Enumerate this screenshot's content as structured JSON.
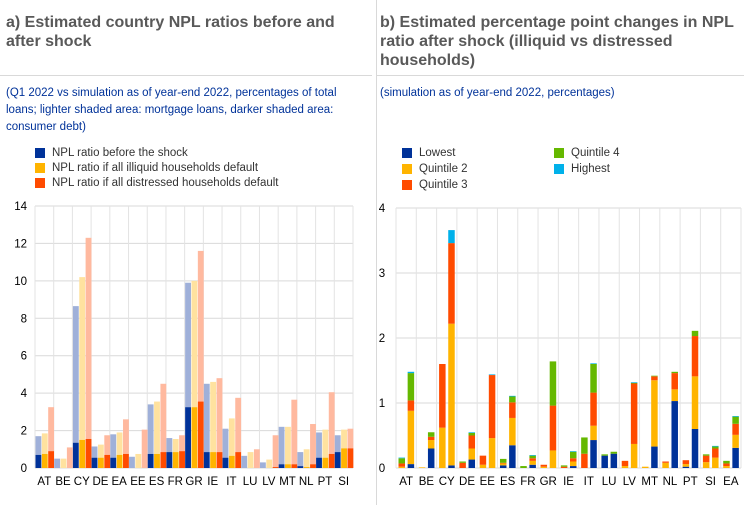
{
  "panels": {
    "a": {
      "title": "a) Estimated country NPL ratios before and after shock",
      "subtitle": "(Q1 2022 vs simulation as of year-end 2022, percentages of total loans; lighter shaded area: mortgage loans, darker shaded area: consumer debt)",
      "legend": [
        {
          "label": "NPL ratio before the shock",
          "color": "#003299"
        },
        {
          "label": "NPL ratio if all illiquid households default",
          "color": "#ffb400"
        },
        {
          "label": "NPL ratio if all distressed households default",
          "color": "#ff4b00"
        }
      ]
    },
    "b": {
      "title": "b) Estimated percentage point changes in NPL ratio after shock (illiquid vs distressed households)",
      "subtitle": "(simulation as of year-end 2022, percentages)",
      "legend": [
        {
          "label": "Lowest",
          "color": "#003299"
        },
        {
          "label": "Quintile 2",
          "color": "#ffb400"
        },
        {
          "label": "Quintile 3",
          "color": "#ff4b00"
        },
        {
          "label": "Quintile 4",
          "color": "#65b800"
        },
        {
          "label": "Highest",
          "color": "#00b1ea"
        }
      ]
    }
  },
  "chart_data": [
    {
      "type": "bar",
      "title": "a) Estimated country NPL ratios before and after shock",
      "xlabel": "",
      "ylabel": "",
      "ylim": [
        0,
        14
      ],
      "yticks": [
        0,
        2,
        4,
        6,
        8,
        10,
        12,
        14
      ],
      "grid": true,
      "legend_position": "top-left",
      "categories": [
        "AT",
        "BE",
        "CY",
        "DE",
        "EA",
        "EE",
        "ES",
        "FR",
        "GR",
        "IE",
        "IT",
        "LU",
        "LV",
        "MT",
        "NL",
        "PT",
        "SI"
      ],
      "series": [
        {
          "name": "NPL ratio before the shock",
          "color": "#003299",
          "light_color": "#9fb0d9",
          "consumer": [
            0.7,
            0,
            1.35,
            0.55,
            0.55,
            0,
            0.75,
            0.85,
            3.25,
            0.85,
            0.55,
            0,
            0,
            0.2,
            0.1,
            0.55,
            0.85
          ],
          "total": [
            1.7,
            0.5,
            8.65,
            1.15,
            1.8,
            0.6,
            3.4,
            1.6,
            9.9,
            4.5,
            2.1,
            0.65,
            0.3,
            2.2,
            0.85,
            1.9,
            1.75
          ]
        },
        {
          "name": "NPL ratio if all illiquid households default",
          "color": "#ffb400",
          "light_color": "#ffe29f",
          "consumer": [
            0.75,
            0,
            1.5,
            0.55,
            0.7,
            0,
            0.75,
            0.85,
            3.25,
            0.85,
            0.65,
            0,
            0,
            0.2,
            0.05,
            0.55,
            1.05
          ],
          "total": [
            1.85,
            0.5,
            10.2,
            1.25,
            1.9,
            0.75,
            3.55,
            1.55,
            10.0,
            4.6,
            2.65,
            0.85,
            0.45,
            2.2,
            1.0,
            2.05,
            2.05
          ]
        },
        {
          "name": "NPL ratio if all distressed households default",
          "color": "#ff4b00",
          "light_color": "#ffb99f",
          "consumer": [
            0.9,
            0,
            1.55,
            0.7,
            0.75,
            0,
            0.85,
            0.9,
            3.55,
            0.85,
            0.85,
            0,
            0.05,
            0.2,
            0.2,
            0.75,
            1.05
          ],
          "total": [
            3.25,
            1.1,
            12.3,
            1.75,
            2.6,
            2.05,
            4.5,
            1.75,
            11.6,
            4.8,
            3.75,
            1.0,
            1.75,
            3.65,
            2.35,
            4.05,
            2.1
          ]
        }
      ]
    },
    {
      "type": "bar",
      "stacked": true,
      "title": "b) Estimated percentage point changes in NPL ratio after shock (illiquid vs distressed households)",
      "xlabel": "",
      "ylabel": "",
      "ylim": [
        0,
        4
      ],
      "yticks": [
        0,
        1,
        2,
        3,
        4
      ],
      "grid": true,
      "legend_position": "top-left",
      "categories": [
        "AT",
        "BE",
        "CY",
        "DE",
        "EE",
        "ES",
        "FR",
        "GR",
        "IE",
        "IT",
        "LU",
        "LV",
        "MT",
        "NL",
        "PT",
        "SI",
        "EA"
      ],
      "bar_groups": [
        "illiquid",
        "distressed"
      ],
      "series_names": [
        "Lowest",
        "Quintile 2",
        "Quintile 3",
        "Quintile 4",
        "Highest"
      ],
      "bars": [
        {
          "category": "AT",
          "group": "illiquid",
          "values": [
            0.0,
            0.02,
            0.05,
            0.08,
            0.01
          ]
        },
        {
          "category": "AT",
          "group": "distressed",
          "values": [
            0.06,
            0.82,
            0.16,
            0.42,
            0.02
          ]
        },
        {
          "category": "BE",
          "group": "illiquid",
          "values": [
            0.0,
            0.01,
            0.0,
            0.0,
            0.0
          ]
        },
        {
          "category": "BE",
          "group": "distressed",
          "values": [
            0.3,
            0.13,
            0.05,
            0.07,
            0.0
          ]
        },
        {
          "category": "CY",
          "group": "illiquid",
          "values": [
            0.0,
            0.62,
            0.98,
            0.0,
            0.0
          ]
        },
        {
          "category": "CY",
          "group": "distressed",
          "values": [
            0.04,
            2.18,
            1.24,
            0.0,
            0.2
          ]
        },
        {
          "category": "DE",
          "group": "illiquid",
          "values": [
            0.0,
            0.0,
            0.08,
            0.02,
            0.0
          ]
        },
        {
          "category": "DE",
          "group": "distressed",
          "values": [
            0.13,
            0.17,
            0.2,
            0.04,
            0.01
          ]
        },
        {
          "category": "EE",
          "group": "illiquid",
          "values": [
            0.0,
            0.05,
            0.14,
            0.0,
            0.0
          ]
        },
        {
          "category": "EE",
          "group": "distressed",
          "values": [
            0.0,
            0.46,
            0.97,
            0.0,
            0.01
          ]
        },
        {
          "category": "ES",
          "group": "illiquid",
          "values": [
            0.04,
            0.03,
            0.01,
            0.06,
            0.0
          ]
        },
        {
          "category": "ES",
          "group": "distressed",
          "values": [
            0.35,
            0.42,
            0.24,
            0.09,
            0.01
          ]
        },
        {
          "category": "FR",
          "group": "illiquid",
          "values": [
            0.0,
            0.0,
            0.0,
            0.03,
            0.0
          ]
        },
        {
          "category": "FR",
          "group": "distressed",
          "values": [
            0.05,
            0.06,
            0.04,
            0.04,
            0.01
          ]
        },
        {
          "category": "GR",
          "group": "illiquid",
          "values": [
            0.0,
            0.02,
            0.03,
            0.0,
            0.0
          ]
        },
        {
          "category": "GR",
          "group": "distressed",
          "values": [
            0.0,
            0.27,
            0.69,
            0.68,
            0.0
          ]
        },
        {
          "category": "IE",
          "group": "illiquid",
          "values": [
            0.0,
            0.0,
            0.02,
            0.02,
            0.0
          ]
        },
        {
          "category": "IE",
          "group": "distressed",
          "values": [
            0.03,
            0.07,
            0.05,
            0.1,
            0.01
          ]
        },
        {
          "category": "IT",
          "group": "illiquid",
          "values": [
            0.0,
            0.0,
            0.22,
            0.25,
            0.0
          ]
        },
        {
          "category": "IT",
          "group": "distressed",
          "values": [
            0.43,
            0.22,
            0.51,
            0.44,
            0.01
          ]
        },
        {
          "category": "LU",
          "group": "illiquid",
          "values": [
            0.19,
            0.0,
            0.0,
            0.02,
            0.0
          ]
        },
        {
          "category": "LU",
          "group": "distressed",
          "values": [
            0.22,
            0.0,
            0.0,
            0.03,
            0.0
          ]
        },
        {
          "category": "LV",
          "group": "illiquid",
          "values": [
            0.0,
            0.03,
            0.08,
            0.0,
            0.0
          ]
        },
        {
          "category": "LV",
          "group": "distressed",
          "values": [
            0.0,
            0.37,
            0.93,
            0.01,
            0.01
          ]
        },
        {
          "category": "MT",
          "group": "illiquid",
          "values": [
            0.0,
            0.02,
            0.0,
            0.0,
            0.0
          ]
        },
        {
          "category": "MT",
          "group": "distressed",
          "values": [
            0.33,
            1.02,
            0.06,
            0.01,
            0.0
          ]
        },
        {
          "category": "NL",
          "group": "illiquid",
          "values": [
            0.0,
            0.08,
            0.02,
            0.0,
            0.0
          ]
        },
        {
          "category": "NL",
          "group": "distressed",
          "values": [
            1.03,
            0.18,
            0.25,
            0.02,
            0.0
          ]
        },
        {
          "category": "PT",
          "group": "illiquid",
          "values": [
            0.02,
            0.04,
            0.06,
            0.0,
            0.0
          ]
        },
        {
          "category": "PT",
          "group": "distressed",
          "values": [
            0.6,
            0.81,
            0.62,
            0.08,
            0.0
          ]
        },
        {
          "category": "SI",
          "group": "illiquid",
          "values": [
            0.0,
            0.09,
            0.1,
            0.02,
            0.0
          ]
        },
        {
          "category": "SI",
          "group": "distressed",
          "values": [
            0.0,
            0.16,
            0.14,
            0.03,
            0.01
          ]
        },
        {
          "category": "EA",
          "group": "illiquid",
          "values": [
            0.0,
            0.03,
            0.04,
            0.04,
            0.0
          ]
        },
        {
          "category": "EA",
          "group": "distressed",
          "values": [
            0.31,
            0.2,
            0.17,
            0.11,
            0.01
          ]
        }
      ]
    }
  ]
}
